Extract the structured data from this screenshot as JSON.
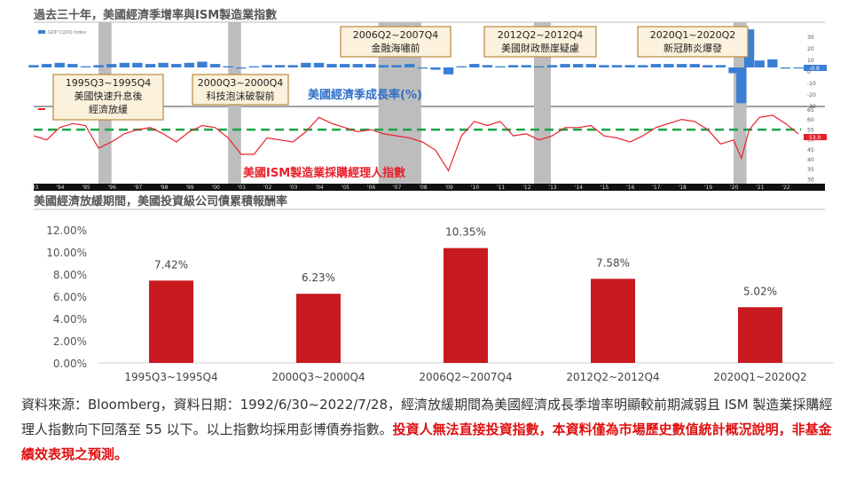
{
  "top_panel": {
    "title": "過去三十年，美國經濟季增率與ISM製造業指數",
    "gdp_legend": "GDP CQOQ Index",
    "gdp_label": "美國經濟季成長率(%)",
    "ism_label": "美國ISM製造業採購經理人指數",
    "gdp_axis_ticks": [
      "30",
      "20",
      "10",
      "0",
      "-10",
      "-20",
      "-30"
    ],
    "gdp_last": "-0.9",
    "ism_axis_ticks": [
      "65",
      "60",
      "55",
      "50",
      "45",
      "40",
      "35",
      "30"
    ],
    "ism_last": "53.0",
    "year_ticks": [
      "'93",
      "'94",
      "'95",
      "'96",
      "'97",
      "'98",
      "'99",
      "'00",
      "'01",
      "'02",
      "'03",
      "'04",
      "'05",
      "'06",
      "'07",
      "'08",
      "'09",
      "'10",
      "'11",
      "'12",
      "'13",
      "'14",
      "'15",
      "'16",
      "'17",
      "'18",
      "'19",
      "'20",
      "'21",
      "'22"
    ],
    "callouts": [
      {
        "period": "1995Q3~1995Q4",
        "desc1": "美國快速升息後",
        "desc2": "經濟放緩"
      },
      {
        "period": "2000Q3~2000Q4",
        "desc1": "科技泡沫破裂前",
        "desc2": ""
      },
      {
        "period": "2006Q2~2007Q4",
        "desc1": "金融海嘯前",
        "desc2": ""
      },
      {
        "period": "2012Q2~2012Q4",
        "desc1": "美國財政懸崖疑慮",
        "desc2": ""
      },
      {
        "period": "2020Q1~2020Q2",
        "desc1": "新冠肺炎爆發",
        "desc2": ""
      }
    ]
  },
  "bottom_panel": {
    "title": "美國經濟放緩期間，美國投資級公司債累積報酬率"
  },
  "chart_data": [
    {
      "type": "bar",
      "title": "美國經濟放緩期間，美國投資級公司債累積報酬率",
      "categories": [
        "1995Q3~1995Q4",
        "2000Q3~2000Q4",
        "2006Q2~2007Q4",
        "2012Q2~2012Q4",
        "2020Q1~2020Q2"
      ],
      "values": [
        7.42,
        6.23,
        10.35,
        7.58,
        5.02
      ],
      "data_labels": [
        "7.42%",
        "6.23%",
        "10.35%",
        "7.58%",
        "5.02%"
      ],
      "y_ticks": [
        "0.00%",
        "2.00%",
        "4.00%",
        "6.00%",
        "8.00%",
        "10.00%",
        "12.00%"
      ],
      "ylim": [
        0,
        12
      ],
      "bar_color": "#c8191f",
      "grid": false
    },
    {
      "type": "line",
      "title": "過去三十年，美國經濟季增率與ISM製造業指數",
      "series": [
        {
          "name": "美國ISM製造業採購經理人指數",
          "x": [
            1993,
            1993.5,
            1994,
            1994.5,
            1995,
            1995.5,
            1996,
            1996.5,
            1997,
            1997.5,
            1998,
            1998.5,
            1999,
            1999.5,
            2000,
            2000.5,
            2001,
            2001.5,
            2002,
            2002.5,
            2003,
            2003.5,
            2004,
            2004.5,
            2005,
            2005.5,
            2006,
            2006.5,
            2007,
            2007.5,
            2008,
            2008.5,
            2009,
            2009.5,
            2010,
            2010.5,
            2011,
            2011.5,
            2012,
            2012.5,
            2013,
            2013.5,
            2014,
            2014.5,
            2015,
            2015.5,
            2016,
            2016.5,
            2017,
            2017.5,
            2018,
            2018.5,
            2019,
            2019.5,
            2020,
            2020.3,
            2020.6,
            2021,
            2021.5,
            2022,
            2022.5
          ],
          "values": [
            52,
            50,
            56,
            58,
            57,
            46,
            49,
            53,
            55,
            56,
            53,
            49,
            54,
            57,
            56,
            51,
            43,
            43,
            51,
            50,
            49,
            54,
            61,
            58,
            56,
            54,
            55,
            53,
            52,
            51,
            49,
            45,
            35,
            52,
            59,
            57,
            59,
            52,
            53,
            50,
            52,
            56,
            56,
            57,
            52,
            51,
            49,
            52,
            56,
            58,
            60,
            59,
            55,
            48,
            50,
            41,
            55,
            61,
            62,
            58,
            53
          ],
          "color": "#e8202a"
        },
        {
          "name": "GDP CQOQ Index",
          "x": [
            1993,
            1993.5,
            1994,
            1994.5,
            1995,
            1995.5,
            1996,
            1996.5,
            1997,
            1997.5,
            1998,
            1998.5,
            1999,
            1999.5,
            2000,
            2000.5,
            2001,
            2001.5,
            2002,
            2002.5,
            2003,
            2003.5,
            2004,
            2004.5,
            2005,
            2005.5,
            2006,
            2006.5,
            2007,
            2007.5,
            2008,
            2008.5,
            2009,
            2009.5,
            2010,
            2010.5,
            2011,
            2011.5,
            2012,
            2012.5,
            2013,
            2013.5,
            2014,
            2014.5,
            2015,
            2015.5,
            2016,
            2016.5,
            2017,
            2017.5,
            2018,
            2018.5,
            2019,
            2019.5,
            2020,
            2020.3,
            2020.6,
            2021,
            2021.5,
            2022,
            2022.5
          ],
          "values": [
            2,
            3,
            4,
            3,
            1,
            2,
            3,
            4,
            4,
            3,
            4,
            3,
            4,
            5,
            3,
            1,
            -1,
            1,
            2,
            2,
            2,
            4,
            4,
            3,
            3,
            3,
            3,
            2,
            2,
            3,
            -1,
            -2,
            -6,
            1,
            3,
            2,
            1,
            2,
            2,
            1,
            2,
            3,
            3,
            3,
            2,
            2,
            2,
            2,
            3,
            3,
            3,
            3,
            2,
            2,
            -5,
            -31,
            33,
            6,
            7,
            -1,
            -0.9
          ],
          "color": "#3a7fd5"
        }
      ],
      "reference_line": 55,
      "x_range": [
        1993,
        2022.6
      ]
    }
  ],
  "footer": {
    "source": "資料來源：Bloomberg，資料日期：1992/6/30~2022/7/28，經濟放緩期間為美國經濟成長季增率明顯較前期減弱且 ISM 製造業採購經理人指數向下回落至 55 以下。以上指數均採用彭博債券指數。",
    "warning": "投資人無法直接投資指數，本資料僅為市場歷史數值統計概況說明，非基金績效表現之預測。"
  }
}
